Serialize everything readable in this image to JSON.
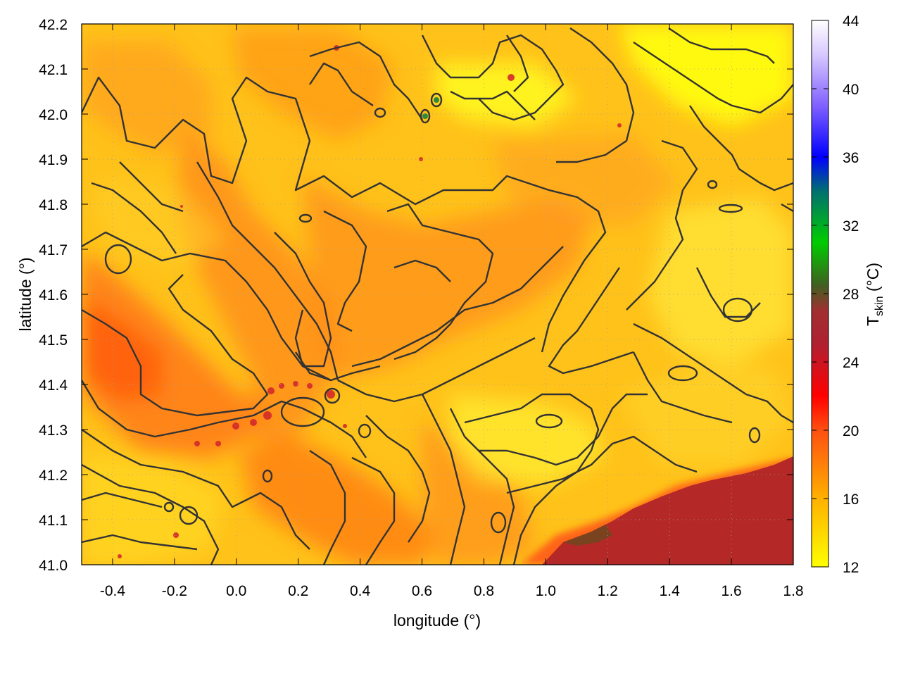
{
  "chart_data": {
    "type": "heatmap",
    "title": "",
    "xlabel": "longitude (°)",
    "ylabel": "latitude (°)",
    "colorbar_label_main": "T",
    "colorbar_label_sub": "skin",
    "colorbar_label_unit": " (°C)",
    "xlim": [
      -0.5,
      1.8
    ],
    "ylim": [
      41.0,
      42.2
    ],
    "x_ticks": [
      -0.4,
      -0.2,
      0.0,
      0.2,
      0.4,
      0.6,
      0.8,
      1.0,
      1.2,
      1.4,
      1.6,
      1.8
    ],
    "x_tick_labels": [
      "-0.4",
      "-0.2",
      "0.0",
      "0.2",
      "0.4",
      "0.6",
      "0.8",
      "1.0",
      "1.2",
      "1.4",
      "1.6",
      "1.8"
    ],
    "y_ticks": [
      41.0,
      41.1,
      41.2,
      41.3,
      41.4,
      41.5,
      41.6,
      41.7,
      41.8,
      41.9,
      42.0,
      42.1,
      42.2
    ],
    "y_tick_labels": [
      "41.0",
      "41.1",
      "41.2",
      "41.3",
      "41.4",
      "41.5",
      "41.6",
      "41.7",
      "41.8",
      "41.9",
      "42.0",
      "42.1",
      "42.2"
    ],
    "colorbar_range": [
      12,
      44
    ],
    "colorbar_ticks": [
      12,
      16,
      20,
      24,
      28,
      32,
      36,
      40,
      44
    ],
    "colorbar_tick_labels": [
      "12",
      "16",
      "20",
      "24",
      "28",
      "32",
      "36",
      "40",
      "44"
    ],
    "colorbar_stops": [
      {
        "value": 12,
        "color": "#ffff00"
      },
      {
        "value": 16,
        "color": "#ffb000"
      },
      {
        "value": 20,
        "color": "#ff5010"
      },
      {
        "value": 22,
        "color": "#ff0000"
      },
      {
        "value": 25,
        "color": "#b02030"
      },
      {
        "value": 27,
        "color": "#a03030"
      },
      {
        "value": 28.5,
        "color": "#406020"
      },
      {
        "value": 31,
        "color": "#00cc00"
      },
      {
        "value": 34,
        "color": "#007070"
      },
      {
        "value": 36,
        "color": "#0000ff"
      },
      {
        "value": 39,
        "color": "#8060ff"
      },
      {
        "value": 42,
        "color": "#d8c8ff"
      },
      {
        "value": 44,
        "color": "#ffffff"
      }
    ],
    "grid": true,
    "contours": true,
    "legend": "colorbar-right"
  }
}
